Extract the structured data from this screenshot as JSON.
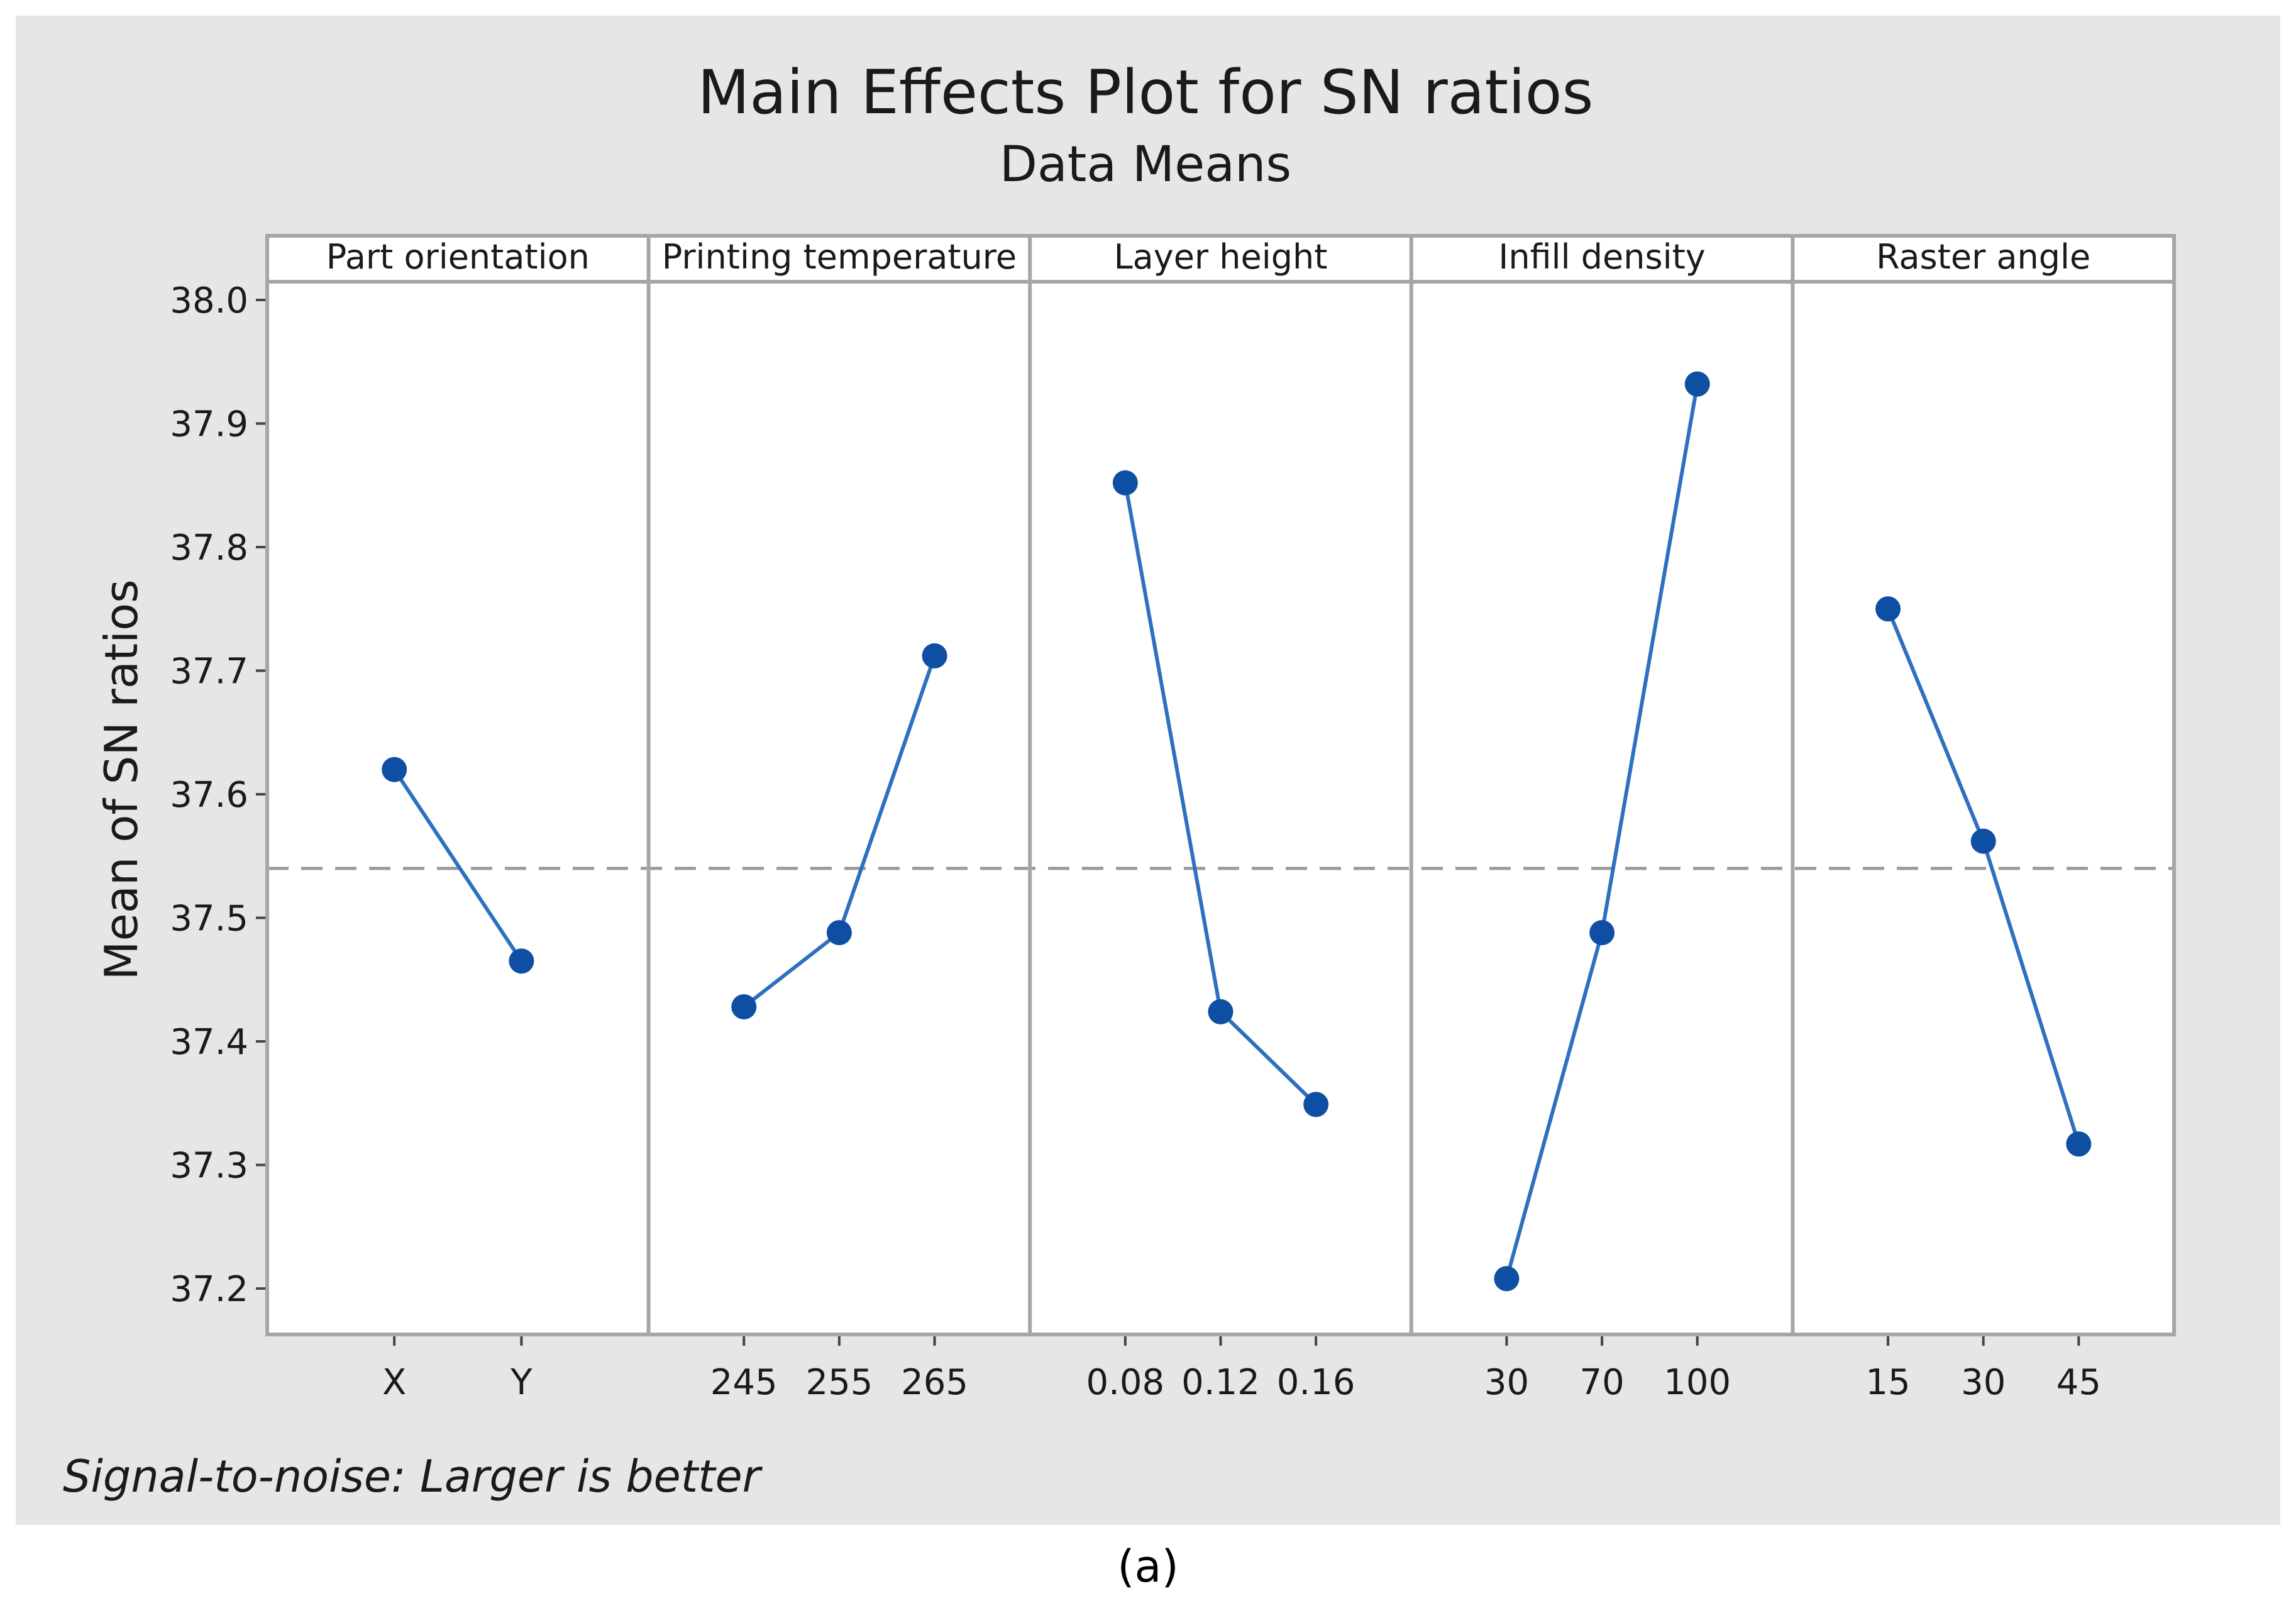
{
  "chart_data": {
    "type": "line",
    "title": "Main Effects Plot for SN ratios",
    "subtitle": "Data Means",
    "ylabel": "Mean of SN ratios",
    "ylim": [
      37.15,
      38.015
    ],
    "yticks": [
      37.2,
      37.3,
      37.4,
      37.5,
      37.6,
      37.7,
      37.8,
      37.9,
      38.0
    ],
    "ytick_labels": [
      "37.2",
      "37.3",
      "37.4",
      "37.5",
      "37.6",
      "37.7",
      "37.8",
      "37.9",
      "38.0"
    ],
    "reference_line": {
      "value": 37.54,
      "style": "dashed"
    },
    "footnote": "Signal-to-noise: Larger is better",
    "caption": "(a)",
    "colors": {
      "series": "#2e6fbf",
      "marker": "#0f4fa3",
      "reference": "#999999",
      "frame": "#a6a6a6",
      "background": "#e6e6e6",
      "panel": "#ffffff"
    },
    "series": [
      {
        "name": "Part orientation",
        "categories": [
          "X",
          "Y"
        ],
        "values": [
          37.62,
          37.465
        ]
      },
      {
        "name": "Printing temperature",
        "categories": [
          "245",
          "255",
          "265"
        ],
        "values": [
          37.428,
          37.488,
          37.712
        ]
      },
      {
        "name": "Layer height",
        "categories": [
          "0.08",
          "0.12",
          "0.16"
        ],
        "values": [
          37.852,
          37.424,
          37.349
        ]
      },
      {
        "name": "Infill density",
        "categories": [
          "30",
          "70",
          "100"
        ],
        "values": [
          37.208,
          37.488,
          37.932
        ]
      },
      {
        "name": "Raster angle",
        "categories": [
          "15",
          "30",
          "45"
        ],
        "values": [
          37.75,
          37.562,
          37.317
        ]
      }
    ]
  }
}
